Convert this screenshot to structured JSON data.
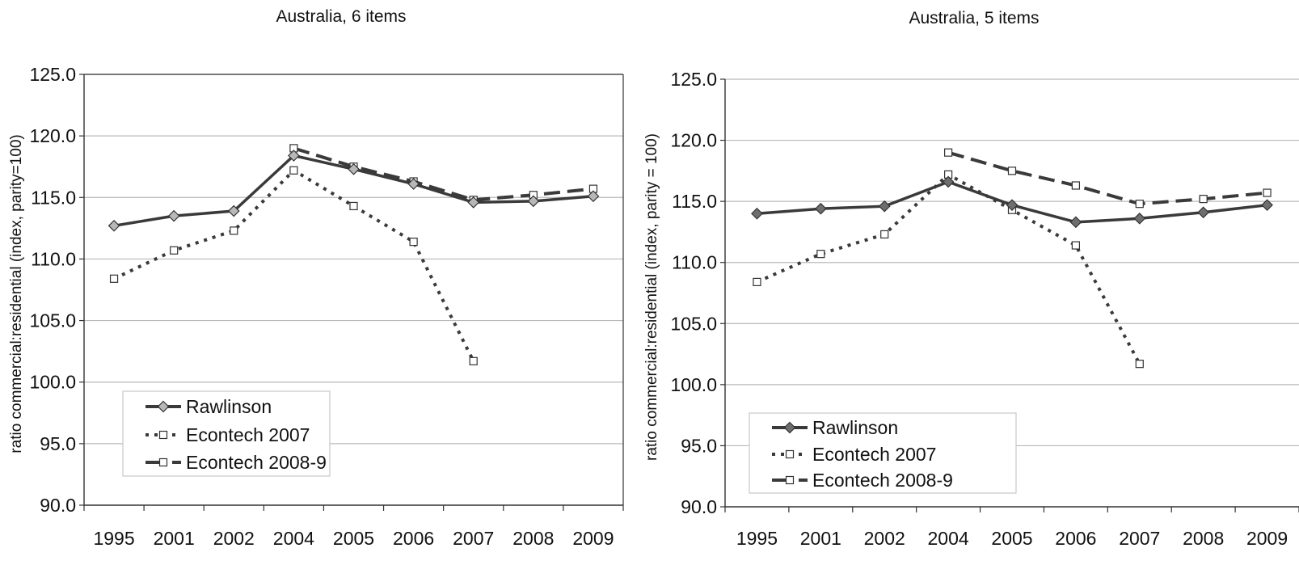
{
  "chart_data": [
    {
      "type": "line",
      "title": "Australia, 6 items",
      "xlabel": "",
      "ylabel": "ratio  commercial:residential  (index,  parity=100)",
      "categories": [
        "1995",
        "2001",
        "2002",
        "2004",
        "2005",
        "2006",
        "2007",
        "2008",
        "2009"
      ],
      "ylim": [
        90,
        125
      ],
      "yticks": [
        "90.0",
        "95.0",
        "100.0",
        "105.0",
        "110.0",
        "115.0",
        "120.0",
        "125.0"
      ],
      "grid": true,
      "legend_position": "bottom-left",
      "series": [
        {
          "name": "Rawlinson",
          "values": [
            112.7,
            113.5,
            113.9,
            118.4,
            117.3,
            116.1,
            114.6,
            114.7,
            115.1
          ],
          "style": "solid",
          "marker": "diamond",
          "color": "#3a3a3a",
          "marker_fill": "#b8b8b8"
        },
        {
          "name": "Econtech 2007",
          "values": [
            108.4,
            110.7,
            112.3,
            117.2,
            114.3,
            111.4,
            101.7,
            null,
            null
          ],
          "style": "dotted",
          "marker": "square",
          "color": "#3a3a3a",
          "marker_fill": "#ffffff"
        },
        {
          "name": "Econtech 2008-9",
          "values": [
            null,
            null,
            null,
            119.0,
            117.5,
            116.3,
            114.8,
            115.2,
            115.7
          ],
          "style": "dashed",
          "marker": "square",
          "color": "#3a3a3a",
          "marker_fill": "#ffffff"
        }
      ]
    },
    {
      "type": "line",
      "title": "Australia, 5 items",
      "xlabel": "",
      "ylabel": "ratio  commercial:residential  (index,  parity = 100)",
      "categories": [
        "1995",
        "2001",
        "2002",
        "2004",
        "2005",
        "2006",
        "2007",
        "2008",
        "2009"
      ],
      "ylim": [
        90,
        125
      ],
      "yticks": [
        "90.0",
        "95.0",
        "100.0",
        "105.0",
        "110.0",
        "115.0",
        "120.0",
        "125.0"
      ],
      "grid": true,
      "legend_position": "bottom-left",
      "series": [
        {
          "name": "Rawlinson",
          "values": [
            114.0,
            114.4,
            114.6,
            116.6,
            114.7,
            113.3,
            113.6,
            114.1,
            114.7
          ],
          "style": "solid",
          "marker": "diamond",
          "color": "#3a3a3a",
          "marker_fill": "#6e6e6e"
        },
        {
          "name": "Econtech 2007",
          "values": [
            108.4,
            110.7,
            112.3,
            117.2,
            114.3,
            111.4,
            101.7,
            null,
            null
          ],
          "style": "dotted",
          "marker": "square",
          "color": "#3a3a3a",
          "marker_fill": "#ffffff"
        },
        {
          "name": "Econtech 2008-9",
          "values": [
            null,
            null,
            null,
            119.0,
            117.5,
            116.3,
            114.8,
            115.2,
            115.7
          ],
          "style": "dashed",
          "marker": "square",
          "color": "#3a3a3a",
          "marker_fill": "#ffffff"
        }
      ]
    }
  ]
}
